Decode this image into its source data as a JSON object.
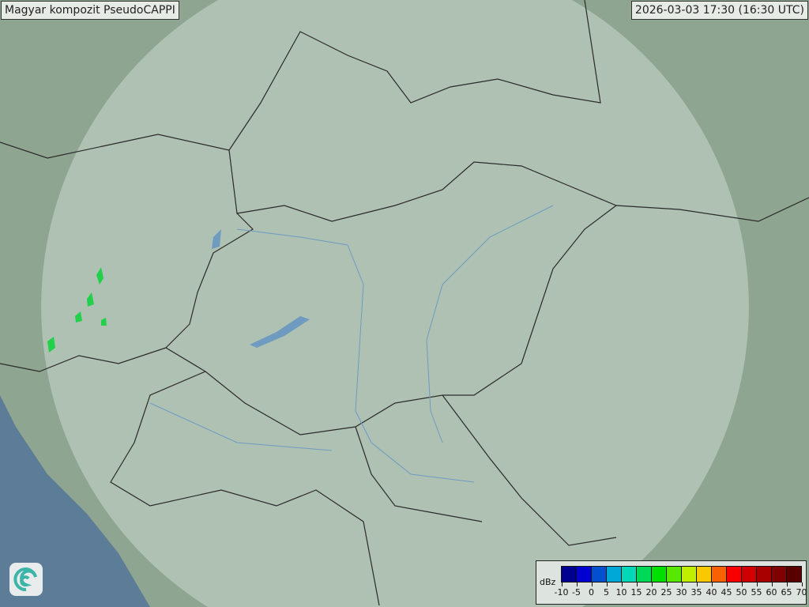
{
  "header": {
    "title": "Magyar kompozit  PseudoCAPPI",
    "timestamp": "2026-03-03 17:30 (16:30 UTC)"
  },
  "legend": {
    "unit": "dBz",
    "ticks": [
      "-10",
      "-5",
      "0",
      "5",
      "10",
      "15",
      "20",
      "25",
      "30",
      "35",
      "40",
      "45",
      "50",
      "55",
      "60",
      "65",
      "70"
    ],
    "colors": [
      "#000090",
      "#0000d0",
      "#0050d0",
      "#00a8d8",
      "#00d8b8",
      "#00d858",
      "#00e000",
      "#58e800",
      "#c0f000",
      "#f8c800",
      "#f86000",
      "#f80000",
      "#d00000",
      "#a80000",
      "#800000",
      "#580000"
    ]
  },
  "map": {
    "colors": {
      "terrain": "#8ea592",
      "coverage": "#d8e4dc",
      "sea": "#5d7c98",
      "border": "#2a2a2a",
      "river": "#6f9bc0",
      "echo": "#22d04a"
    }
  },
  "logo": {
    "icon": "swirl-logo-icon"
  }
}
